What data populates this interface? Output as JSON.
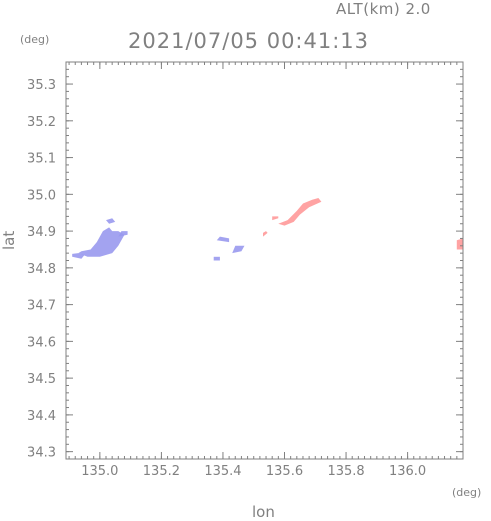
{
  "header": {
    "alt_label": "ALT(km) 2.0",
    "timestamp": "2021/07/05 00:41:13"
  },
  "colors": {
    "axis": "#808080",
    "negative": "#9999ee",
    "positive": "#ff9999"
  },
  "chart_data": {
    "type": "heatmap",
    "title": "2021/07/05 00:41:13",
    "xlabel": "lon",
    "ylabel": "lat",
    "x_unit": "(deg)",
    "y_unit": "(deg)",
    "xlim": [
      134.89,
      136.18
    ],
    "ylim": [
      34.28,
      35.36
    ],
    "x_ticks": [
      135.0,
      135.2,
      135.4,
      135.6,
      135.8,
      136.0
    ],
    "x_tick_labels": [
      "135.0",
      "135.2",
      "135.4",
      "135.6",
      "135.8",
      "136.0"
    ],
    "y_ticks": [
      34.3,
      34.4,
      34.5,
      34.6,
      34.7,
      34.8,
      34.9,
      35.0,
      35.1,
      35.2,
      35.3
    ],
    "y_tick_labels": [
      "34.3",
      "34.4",
      "34.5",
      "34.6",
      "34.7",
      "34.8",
      "34.9",
      "35.0",
      "35.1",
      "35.2",
      "35.3"
    ],
    "regions": [
      {
        "sign": "negative",
        "points": [
          [
            134.93,
            34.84
          ],
          [
            134.96,
            34.83
          ],
          [
            135.0,
            34.83
          ],
          [
            135.04,
            34.84
          ],
          [
            135.06,
            34.86
          ],
          [
            135.08,
            34.89
          ],
          [
            135.06,
            34.9
          ],
          [
            135.04,
            34.9
          ],
          [
            135.03,
            34.91
          ],
          [
            135.01,
            34.9
          ],
          [
            134.99,
            34.87
          ],
          [
            134.97,
            34.85
          ],
          [
            134.94,
            34.845
          ]
        ]
      },
      {
        "sign": "negative",
        "points": [
          [
            134.91,
            34.83
          ],
          [
            134.94,
            34.825
          ],
          [
            134.95,
            34.835
          ],
          [
            134.93,
            34.84
          ],
          [
            134.91,
            34.838
          ]
        ]
      },
      {
        "sign": "negative",
        "points": [
          [
            135.02,
            34.93
          ],
          [
            135.04,
            34.935
          ],
          [
            135.05,
            34.925
          ],
          [
            135.03,
            34.92
          ]
        ]
      },
      {
        "sign": "negative",
        "points": [
          [
            135.06,
            34.885
          ],
          [
            135.09,
            34.89
          ],
          [
            135.09,
            34.9
          ],
          [
            135.07,
            34.9
          ]
        ]
      },
      {
        "sign": "negative",
        "points": [
          [
            135.38,
            34.875
          ],
          [
            135.42,
            34.87
          ],
          [
            135.42,
            34.88
          ],
          [
            135.39,
            34.885
          ]
        ]
      },
      {
        "sign": "negative",
        "points": [
          [
            135.43,
            34.84
          ],
          [
            135.46,
            34.845
          ],
          [
            135.47,
            34.86
          ],
          [
            135.44,
            34.86
          ]
        ]
      },
      {
        "sign": "negative",
        "points": [
          [
            135.37,
            34.82
          ],
          [
            135.39,
            34.82
          ],
          [
            135.39,
            34.83
          ],
          [
            135.37,
            34.83
          ]
        ]
      },
      {
        "sign": "positive",
        "points": [
          [
            135.58,
            34.92
          ],
          [
            135.61,
            34.93
          ],
          [
            135.64,
            34.955
          ],
          [
            135.66,
            34.975
          ],
          [
            135.69,
            34.985
          ],
          [
            135.71,
            34.99
          ],
          [
            135.72,
            34.98
          ],
          [
            135.68,
            34.965
          ],
          [
            135.65,
            34.945
          ],
          [
            135.63,
            34.925
          ],
          [
            135.6,
            34.915
          ]
        ]
      },
      {
        "sign": "positive",
        "points": [
          [
            135.53,
            34.885
          ],
          [
            135.545,
            34.895
          ],
          [
            135.54,
            34.9
          ],
          [
            135.53,
            34.895
          ]
        ]
      },
      {
        "sign": "positive",
        "points": [
          [
            135.56,
            34.93
          ],
          [
            135.58,
            34.935
          ],
          [
            135.58,
            34.94
          ],
          [
            135.56,
            34.94
          ]
        ]
      },
      {
        "sign": "positive",
        "points": [
          [
            136.16,
            34.85
          ],
          [
            136.18,
            34.85
          ],
          [
            136.18,
            34.88
          ],
          [
            136.16,
            34.875
          ]
        ]
      }
    ]
  }
}
